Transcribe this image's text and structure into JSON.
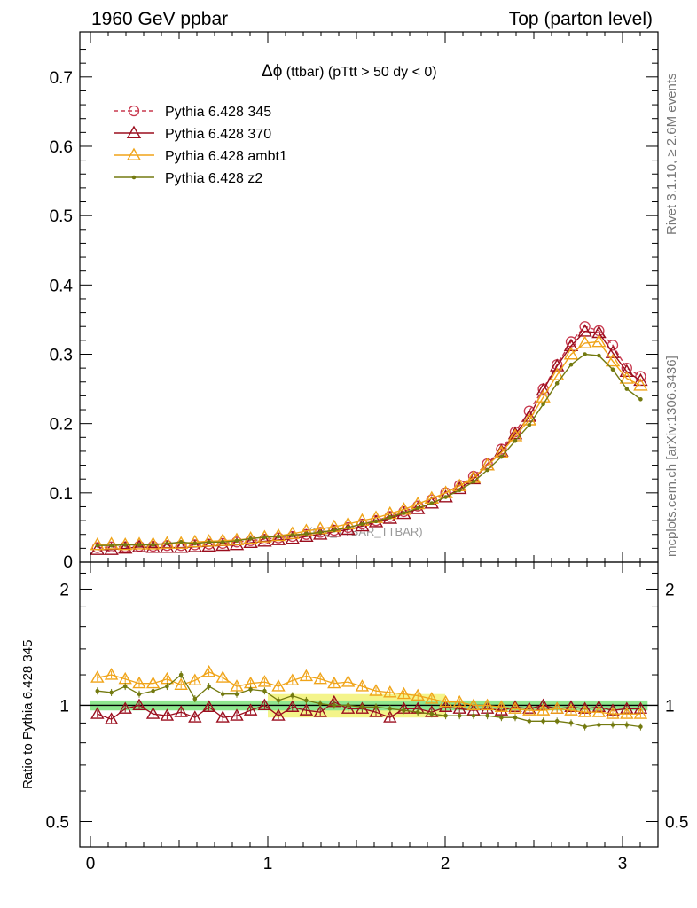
{
  "header": {
    "left": "1960 GeV ppbar",
    "right": "Top (parton level)"
  },
  "side": {
    "rivet": "Rivet 3.1.10, ≥ 2.6M events",
    "mcplots": "mcplots.cern.ch [arXiv:1306.3436]"
  },
  "plot_title": {
    "symbol": "Δϕ",
    "text": " (ttbar) (pTtt > 50 dy < 0)"
  },
  "watermark": "(MC_TTBAR_TTBAR)",
  "ratio_ylabel": "Ratio to Pythia 6.428 345",
  "colors": {
    "p345": "#c8384e",
    "p370": "#9b0e1e",
    "ambt1": "#f0a419",
    "z2": "#737a10",
    "band_green": "#8ee68e",
    "band_yellow": "#f4f48a"
  },
  "chart_data": [
    {
      "type": "line",
      "panel": "main",
      "xlim": [
        -0.06,
        3.2
      ],
      "ylim": [
        0,
        0.765
      ],
      "yticks": [
        0.1,
        0.2,
        0.3,
        0.4,
        0.5,
        0.6,
        0.7
      ],
      "ytick_labels": [
        "0.1",
        "0.2",
        "0.3",
        "0.4",
        "0.5",
        "0.6",
        "0.7"
      ],
      "bottom_label": "0",
      "x": [
        0.039,
        0.118,
        0.196,
        0.275,
        0.353,
        0.432,
        0.511,
        0.589,
        0.668,
        0.746,
        0.825,
        0.903,
        0.982,
        1.06,
        1.139,
        1.217,
        1.296,
        1.374,
        1.453,
        1.532,
        1.61,
        1.689,
        1.767,
        1.846,
        1.924,
        2.003,
        2.081,
        2.16,
        2.238,
        2.317,
        2.395,
        2.474,
        2.553,
        2.631,
        2.71,
        2.788,
        2.867,
        2.945,
        3.024,
        3.102
      ],
      "series": [
        {
          "name": "Pythia 6.428 345",
          "color": "#c8384e",
          "marker": "circle",
          "dashed": true,
          "values": [
            0.021,
            0.022,
            0.022,
            0.023,
            0.023,
            0.024,
            0.024,
            0.025,
            0.026,
            0.027,
            0.029,
            0.031,
            0.033,
            0.035,
            0.037,
            0.04,
            0.043,
            0.046,
            0.05,
            0.055,
            0.06,
            0.066,
            0.073,
            0.081,
            0.09,
            0.1,
            0.111,
            0.124,
            0.142,
            0.163,
            0.188,
            0.218,
            0.25,
            0.285,
            0.318,
            0.34,
            0.334,
            0.313,
            0.28,
            0.268
          ]
        },
        {
          "name": "Pythia 6.428 370",
          "color": "#9b0e1e",
          "marker": "triangle",
          "dashed": false,
          "values": [
            0.018,
            0.018,
            0.02,
            0.022,
            0.021,
            0.021,
            0.021,
            0.022,
            0.023,
            0.024,
            0.025,
            0.028,
            0.03,
            0.032,
            0.034,
            0.037,
            0.04,
            0.044,
            0.047,
            0.052,
            0.058,
            0.063,
            0.07,
            0.077,
            0.085,
            0.094,
            0.106,
            0.12,
            0.14,
            0.16,
            0.185,
            0.21,
            0.248,
            0.283,
            0.312,
            0.333,
            0.331,
            0.302,
            0.275,
            0.262
          ]
        },
        {
          "name": "Pythia 6.428 ambt1",
          "color": "#f0a419",
          "marker": "triangle",
          "dashed": false,
          "values": [
            0.025,
            0.026,
            0.025,
            0.026,
            0.026,
            0.027,
            0.027,
            0.029,
            0.03,
            0.031,
            0.032,
            0.034,
            0.036,
            0.038,
            0.041,
            0.045,
            0.048,
            0.051,
            0.055,
            0.06,
            0.064,
            0.07,
            0.076,
            0.084,
            0.092,
            0.1,
            0.11,
            0.122,
            0.14,
            0.158,
            0.182,
            0.205,
            0.238,
            0.27,
            0.3,
            0.316,
            0.318,
            0.29,
            0.265,
            0.255
          ]
        },
        {
          "name": "Pythia 6.428 z2",
          "color": "#737a10",
          "marker": "dot",
          "dashed": false,
          "values": [
            0.024,
            0.024,
            0.025,
            0.025,
            0.025,
            0.027,
            0.029,
            0.027,
            0.029,
            0.029,
            0.031,
            0.034,
            0.036,
            0.037,
            0.039,
            0.041,
            0.043,
            0.046,
            0.05,
            0.055,
            0.059,
            0.065,
            0.071,
            0.078,
            0.085,
            0.094,
            0.104,
            0.116,
            0.133,
            0.152,
            0.175,
            0.198,
            0.228,
            0.258,
            0.285,
            0.3,
            0.298,
            0.278,
            0.25,
            0.235
          ]
        }
      ]
    },
    {
      "type": "line",
      "panel": "ratio",
      "ylabel": "Ratio to Pythia 6.428 345",
      "xlim": [
        -0.06,
        3.2
      ],
      "ylim": [
        0.43,
        2.35
      ],
      "log_y": true,
      "yticks": [
        0.5,
        1,
        2
      ],
      "ytick_labels": [
        "0.5",
        "1",
        "2"
      ],
      "xticks": [
        0,
        1,
        2,
        3
      ],
      "xtick_labels": [
        "0",
        "1",
        "2",
        "3"
      ],
      "reference_line": 1,
      "band_green": [
        0.97,
        1.03
      ],
      "band_yellow": [
        0.93,
        1.07
      ],
      "band_yellow_xrange": [
        1.0,
        2.0
      ],
      "series": [
        {
          "name": "Pythia 6.428 370",
          "values": [
            0.95,
            0.92,
            0.98,
            1.0,
            0.95,
            0.94,
            0.96,
            0.93,
            0.99,
            0.93,
            0.94,
            0.97,
            1.0,
            0.94,
            0.99,
            0.97,
            0.96,
            1.02,
            0.98,
            0.98,
            0.96,
            0.93,
            0.98,
            0.98,
            0.96,
            0.99,
            0.98,
            0.97,
            0.98,
            0.97,
            0.99,
            0.98,
            1.0,
            0.98,
            0.99,
            0.98,
            0.99,
            0.97,
            0.98,
            0.98
          ]
        },
        {
          "name": "Pythia 6.428 ambt1",
          "values": [
            1.18,
            1.2,
            1.17,
            1.14,
            1.14,
            1.17,
            1.13,
            1.16,
            1.22,
            1.18,
            1.12,
            1.14,
            1.15,
            1.12,
            1.16,
            1.19,
            1.17,
            1.14,
            1.15,
            1.12,
            1.09,
            1.08,
            1.07,
            1.06,
            1.04,
            1.02,
            1.02,
            1.0,
            1.0,
            0.99,
            0.98,
            0.97,
            0.97,
            0.98,
            0.97,
            0.96,
            0.96,
            0.95,
            0.95,
            0.95
          ]
        },
        {
          "name": "Pythia 6.428 z2",
          "values": [
            1.09,
            1.08,
            1.12,
            1.07,
            1.09,
            1.12,
            1.2,
            1.04,
            1.12,
            1.07,
            1.07,
            1.1,
            1.09,
            1.03,
            1.06,
            1.03,
            1.01,
            1.0,
            1.0,
            0.99,
            0.99,
            0.98,
            0.97,
            0.96,
            0.95,
            0.94,
            0.94,
            0.94,
            0.94,
            0.93,
            0.93,
            0.91,
            0.91,
            0.91,
            0.9,
            0.88,
            0.89,
            0.89,
            0.89,
            0.88
          ]
        }
      ]
    }
  ]
}
